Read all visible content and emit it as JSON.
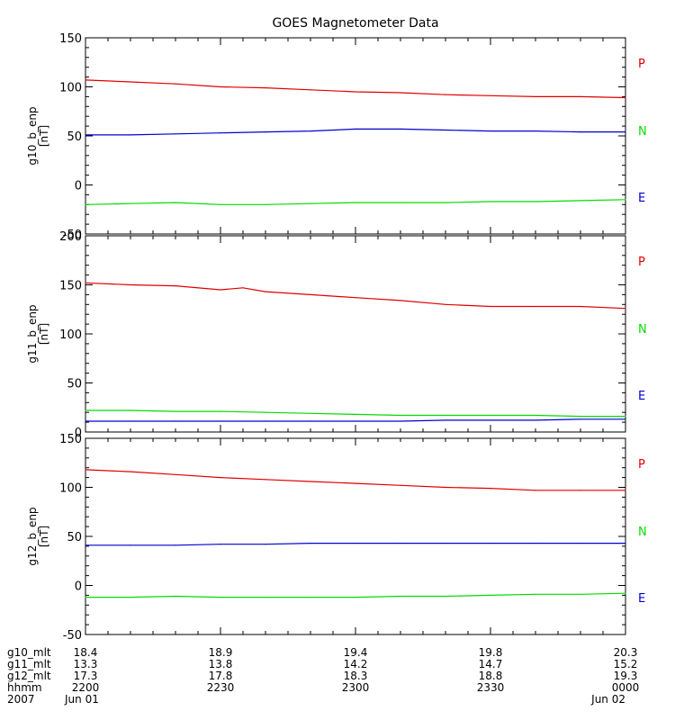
{
  "title": "GOES Magnetometer Data",
  "colors": {
    "P": "#e00000",
    "N": "#00dd00",
    "E": "#0000d0",
    "axis": "#000000"
  },
  "chart_data": [
    {
      "type": "line",
      "ylabel": "g10_b_enp",
      "unit": "[nT]",
      "ylim": [
        -50,
        150
      ],
      "yticks": [
        -50,
        0,
        50,
        100,
        150
      ],
      "legend": [
        "P",
        "N",
        "E"
      ],
      "series": [
        {
          "name": "P",
          "color": "red",
          "x": [
            2200,
            2210,
            2220,
            2230,
            2240,
            2250,
            2300,
            2310,
            2320,
            2330,
            2340,
            2350,
            2400
          ],
          "values": [
            107,
            105,
            103,
            100,
            99,
            97,
            95,
            94,
            92,
            91,
            90,
            90,
            89
          ]
        },
        {
          "name": "N",
          "color": "blue",
          "x": [
            2200,
            2210,
            2220,
            2230,
            2240,
            2250,
            2300,
            2310,
            2320,
            2330,
            2340,
            2350,
            2400
          ],
          "values": [
            51,
            51,
            52,
            53,
            54,
            55,
            57,
            57,
            56,
            55,
            55,
            54,
            54
          ]
        },
        {
          "name": "E",
          "color": "green",
          "x": [
            2200,
            2210,
            2220,
            2230,
            2240,
            2250,
            2300,
            2310,
            2320,
            2330,
            2340,
            2350,
            2400
          ],
          "values": [
            -20,
            -19,
            -18,
            -20,
            -20,
            -19,
            -18,
            -18,
            -18,
            -17,
            -17,
            -16,
            -15
          ]
        }
      ]
    },
    {
      "type": "line",
      "ylabel": "g11_b_enp",
      "unit": "[nT]",
      "ylim": [
        0,
        200
      ],
      "yticks": [
        0,
        50,
        100,
        150,
        200
      ],
      "legend": [
        "P",
        "N",
        "E"
      ],
      "series": [
        {
          "name": "P",
          "color": "red",
          "x": [
            2200,
            2210,
            2220,
            2230,
            2235,
            2240,
            2250,
            2300,
            2310,
            2320,
            2330,
            2340,
            2350,
            2400
          ],
          "values": [
            152,
            150,
            149,
            145,
            147,
            143,
            140,
            137,
            134,
            130,
            128,
            128,
            128,
            126
          ]
        },
        {
          "name": "N",
          "color": "green",
          "x": [
            2200,
            2210,
            2220,
            2230,
            2240,
            2250,
            2300,
            2310,
            2320,
            2330,
            2340,
            2350,
            2400
          ],
          "values": [
            22,
            22,
            21,
            21,
            20,
            19,
            18,
            17,
            17,
            17,
            17,
            16,
            16
          ]
        },
        {
          "name": "E",
          "color": "blue",
          "x": [
            2200,
            2210,
            2220,
            2230,
            2240,
            2250,
            2300,
            2310,
            2320,
            2330,
            2340,
            2350,
            2400
          ],
          "values": [
            11,
            11,
            11,
            11,
            11,
            11,
            11,
            11,
            12,
            12,
            12,
            13,
            13
          ]
        }
      ]
    },
    {
      "type": "line",
      "ylabel": "g12_b_enp",
      "unit": "[nT]",
      "ylim": [
        -50,
        150
      ],
      "yticks": [
        -50,
        0,
        50,
        100,
        150
      ],
      "legend": [
        "P",
        "N",
        "E"
      ],
      "series": [
        {
          "name": "P",
          "color": "red",
          "x": [
            2200,
            2210,
            2220,
            2230,
            2240,
            2250,
            2300,
            2310,
            2320,
            2330,
            2340,
            2350,
            2400
          ],
          "values": [
            118,
            116,
            113,
            110,
            108,
            106,
            104,
            102,
            100,
            99,
            97,
            97,
            97
          ]
        },
        {
          "name": "N",
          "color": "blue",
          "x": [
            2200,
            2210,
            2220,
            2230,
            2240,
            2250,
            2300,
            2310,
            2320,
            2330,
            2340,
            2350,
            2400
          ],
          "values": [
            41,
            41,
            41,
            42,
            42,
            43,
            43,
            43,
            43,
            43,
            43,
            43,
            43
          ]
        },
        {
          "name": "E",
          "color": "green",
          "x": [
            2200,
            2210,
            2220,
            2230,
            2240,
            2250,
            2300,
            2310,
            2320,
            2330,
            2340,
            2350,
            2400
          ],
          "values": [
            -12,
            -12,
            -11,
            -12,
            -12,
            -12,
            -12,
            -11,
            -11,
            -10,
            -9,
            -9,
            -8
          ]
        }
      ]
    }
  ],
  "x_axis": {
    "labels": [
      "g10_mlt",
      "g11_mlt",
      "g12_mlt",
      "hhmm",
      "2007"
    ],
    "columns": [
      [
        "18.4",
        "13.3",
        "17.3",
        "2200",
        "Jun 01"
      ],
      [
        "18.9",
        "13.8",
        "17.8",
        "2230",
        ""
      ],
      [
        "19.4",
        "14.2",
        "18.3",
        "2300",
        ""
      ],
      [
        "19.8",
        "14.7",
        "18.8",
        "2330",
        ""
      ],
      [
        "20.3",
        "15.2",
        "19.3",
        "0000",
        "Jun 02"
      ]
    ]
  }
}
